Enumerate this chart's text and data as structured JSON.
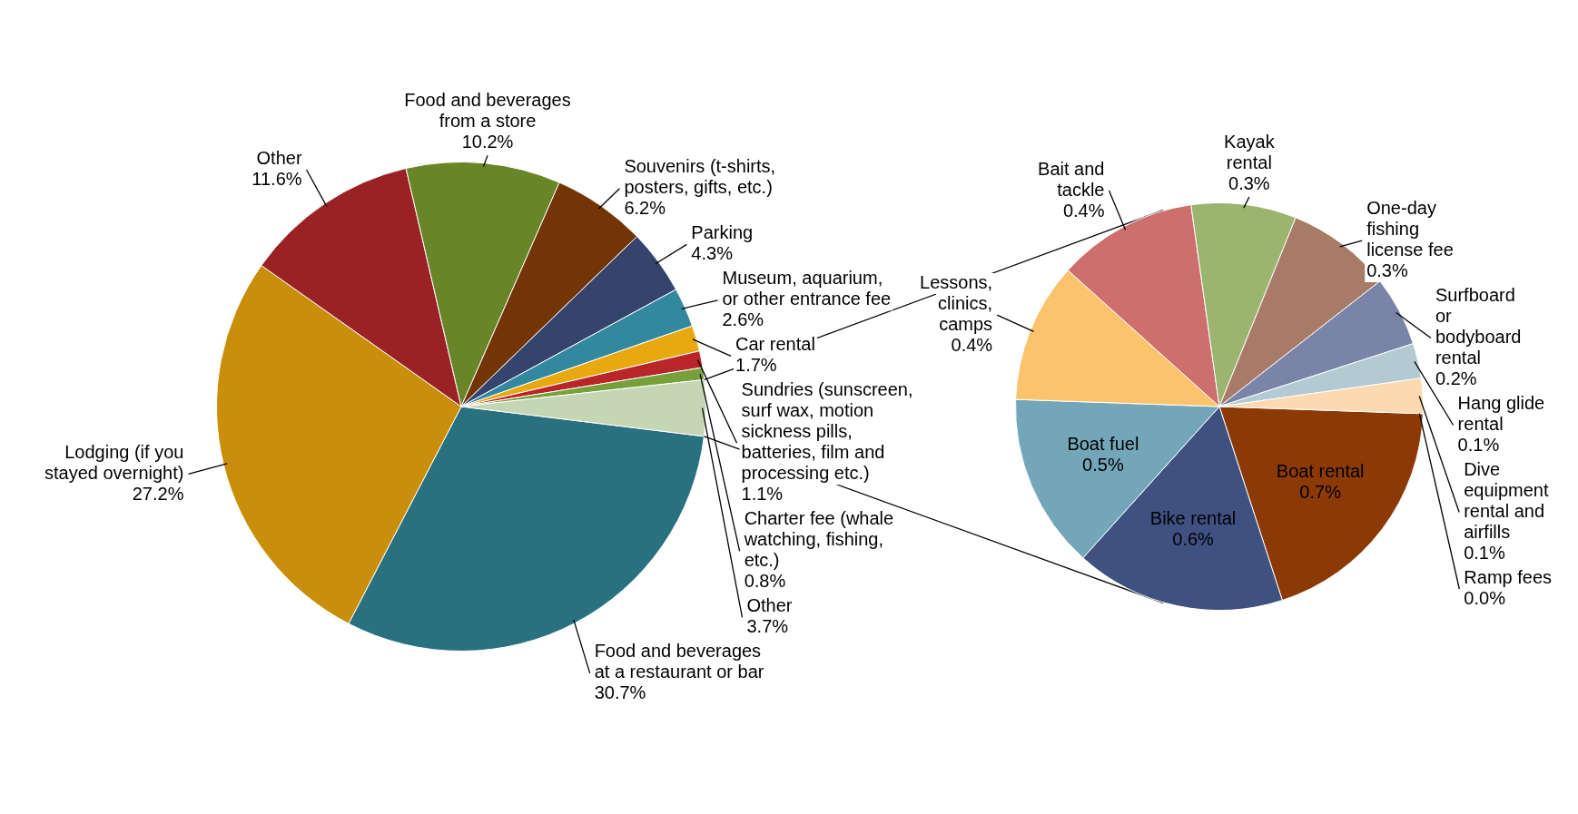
{
  "chart_data": [
    {
      "type": "pie",
      "categories": [
        "Food and beverages at a restaurant or bar",
        "Lodging (if you stayed overnight)",
        "Other",
        "Food and beverages from a store",
        "Souvenirs (t-shirts, posters, gifts, etc.)",
        "Parking",
        "Museum, aquarium, or other entrance fee",
        "Car rental",
        "Sundries (sunscreen, surf wax, motion sickness pills, batteries, film and processing etc.)",
        "Charter fee (whale watching, fishing, etc.)",
        "Other"
      ],
      "values": [
        30.7,
        27.2,
        11.6,
        10.2,
        6.2,
        4.3,
        2.6,
        1.7,
        1.1,
        0.8,
        3.7
      ],
      "colors": [
        "#2a7180",
        "#c98e0a",
        "#9a2225",
        "#688527",
        "#733406",
        "#35446c",
        "#32889e",
        "#e8a90f",
        "#b8262a",
        "#76a03a",
        "#c5d6b5"
      ],
      "value_labels": [
        "30.7%",
        "27.2%",
        "11.6%",
        "10.2%",
        "6.2%",
        "4.3%",
        "2.6%",
        "1.7%",
        "1.1%",
        "0.8%",
        "3.7%"
      ],
      "legend": false
    },
    {
      "type": "pie",
      "categories": [
        "Boat rental",
        "Bike rental",
        "Boat fuel",
        "Lessons, clinics, camps",
        "Bait and tackle",
        "Kayak rental",
        "One-day fishing license fee",
        "Surfboard or bodyboard rental",
        "Hang glide rental",
        "Dive equipment rental and airfills",
        "Ramp fees"
      ],
      "values": [
        0.7,
        0.6,
        0.5,
        0.4,
        0.4,
        0.3,
        0.3,
        0.2,
        0.1,
        0.1,
        0.0
      ],
      "colors": [
        "#8b3a06",
        "#3f5181",
        "#72a6b8",
        "#fbc36b",
        "#cd6f6c",
        "#9bb46e",
        "#a87a68",
        "#7a83a8",
        "#b3cad2",
        "#fcd9b0",
        "#e0adad"
      ],
      "value_labels": [
        "0.7%",
        "0.6%",
        "0.5%",
        "0.4%",
        "0.4%",
        "0.3%",
        "0.3%",
        "0.2%",
        "0.1%",
        "0.1%",
        "0.0%"
      ],
      "legend": false
    }
  ]
}
